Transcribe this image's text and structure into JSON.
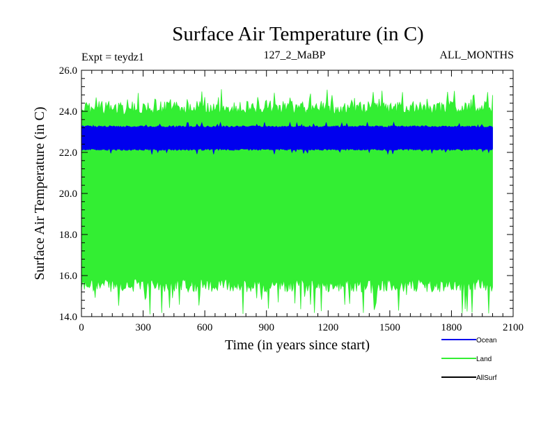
{
  "chart_data": {
    "type": "line",
    "title": "Surface Air Temperature (in C)",
    "subtitle_left": "Expt = teydz1",
    "subtitle_center": "127_2_MaBP",
    "subtitle_right": "ALL_MONTHS",
    "xlabel": "Time (in years since start)",
    "ylabel": "Surface Air Temperature (in C)",
    "xlim": [
      0,
      2100
    ],
    "ylim": [
      14.0,
      26.0
    ],
    "x_ticks": [
      0,
      300,
      600,
      900,
      1200,
      1500,
      1800,
      2100
    ],
    "x_tick_labels": [
      "0",
      "300",
      "600",
      "900",
      "1200",
      "1500",
      "1800",
      "2100"
    ],
    "y_ticks": [
      14.0,
      16.0,
      18.0,
      20.0,
      22.0,
      24.0,
      26.0
    ],
    "y_tick_labels": [
      "14.0",
      "16.0",
      "18.0",
      "20.0",
      "22.0",
      "24.0",
      "26.0"
    ],
    "x_data_range": [
      0,
      2000
    ],
    "legend_position": "bottom-right, outside plot",
    "series": [
      {
        "name": "Land",
        "color": "#33ee33",
        "band_center": 19.9,
        "band_upper_typical": 24.5,
        "band_lower_typical": 15.2,
        "band_upper_extreme": 25.1,
        "band_lower_extreme": 14.1
      },
      {
        "name": "Ocean",
        "color": "#0000ee",
        "band_center": 22.7,
        "band_upper_typical": 23.3,
        "band_lower_typical": 22.1,
        "band_upper_extreme": 23.5,
        "band_lower_extreme": 21.9
      },
      {
        "name": "AllSurf",
        "color": "#000000"
      }
    ]
  }
}
